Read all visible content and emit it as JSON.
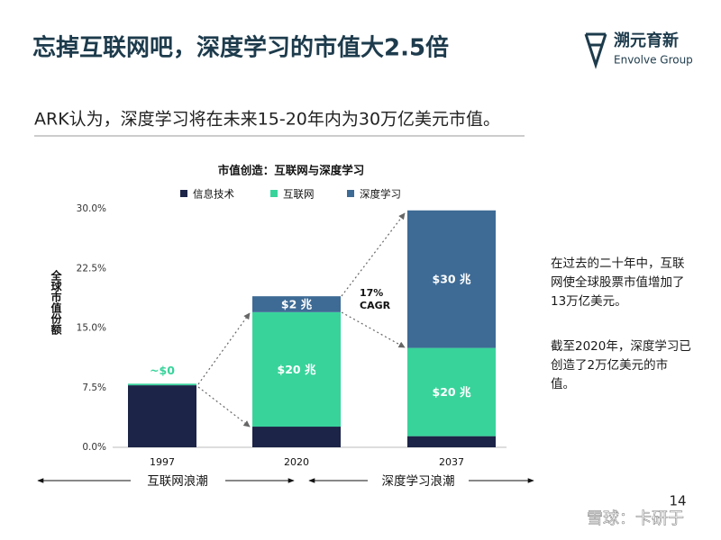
{
  "slide": {
    "title": "忘掉互联网吧，深度学习的市值大2.5倍",
    "subtitle": "ARK认为，深度学习将在未来15-20年内为30万亿美元市值。",
    "logo_name": "溯元育新",
    "logo_sub": "Envolve Group",
    "notes": [
      "在过去的二十年中，互联网使全球股票市值增加了13万亿美元。",
      "截至2020年，深度学习已创造了2万亿美元的市值。"
    ],
    "waves": [
      "互联网浪潮",
      "深度学习浪潮"
    ],
    "page_number": "14",
    "watermark": "雪球：卡研于"
  },
  "chart_data": {
    "type": "stacked-bar",
    "title": "市值创造：互联网与深度学习",
    "y_label": "全球市值份额",
    "categories": [
      "1997",
      "2020",
      "2037"
    ],
    "series": [
      {
        "name": "信息技术",
        "color": "#1c2447",
        "values": [
          7.8,
          2.6,
          1.4
        ]
      },
      {
        "name": "互联网",
        "color": "#38d39b",
        "values": [
          0.2,
          14.4,
          11.1
        ],
        "dollar_labels": [
          "~$0",
          "$20 兆",
          "$20 兆"
        ]
      },
      {
        "name": "深度学习",
        "color": "#3e6b95",
        "values": [
          0,
          2.0,
          17.3
        ],
        "dollar_labels": [
          null,
          "$2 兆",
          "$30 兆"
        ]
      }
    ],
    "ylim": [
      0,
      30
    ],
    "yticks": [
      {
        "value": 0,
        "label": "0.0%"
      },
      {
        "value": 7.5,
        "label": "7.5%"
      },
      {
        "value": 15,
        "label": "15.0%"
      },
      {
        "value": 22.5,
        "label": "22.5%"
      },
      {
        "value": 30,
        "label": "30.0%"
      }
    ],
    "cagr_label": [
      "17%",
      "CAGR"
    ],
    "grid": false
  }
}
